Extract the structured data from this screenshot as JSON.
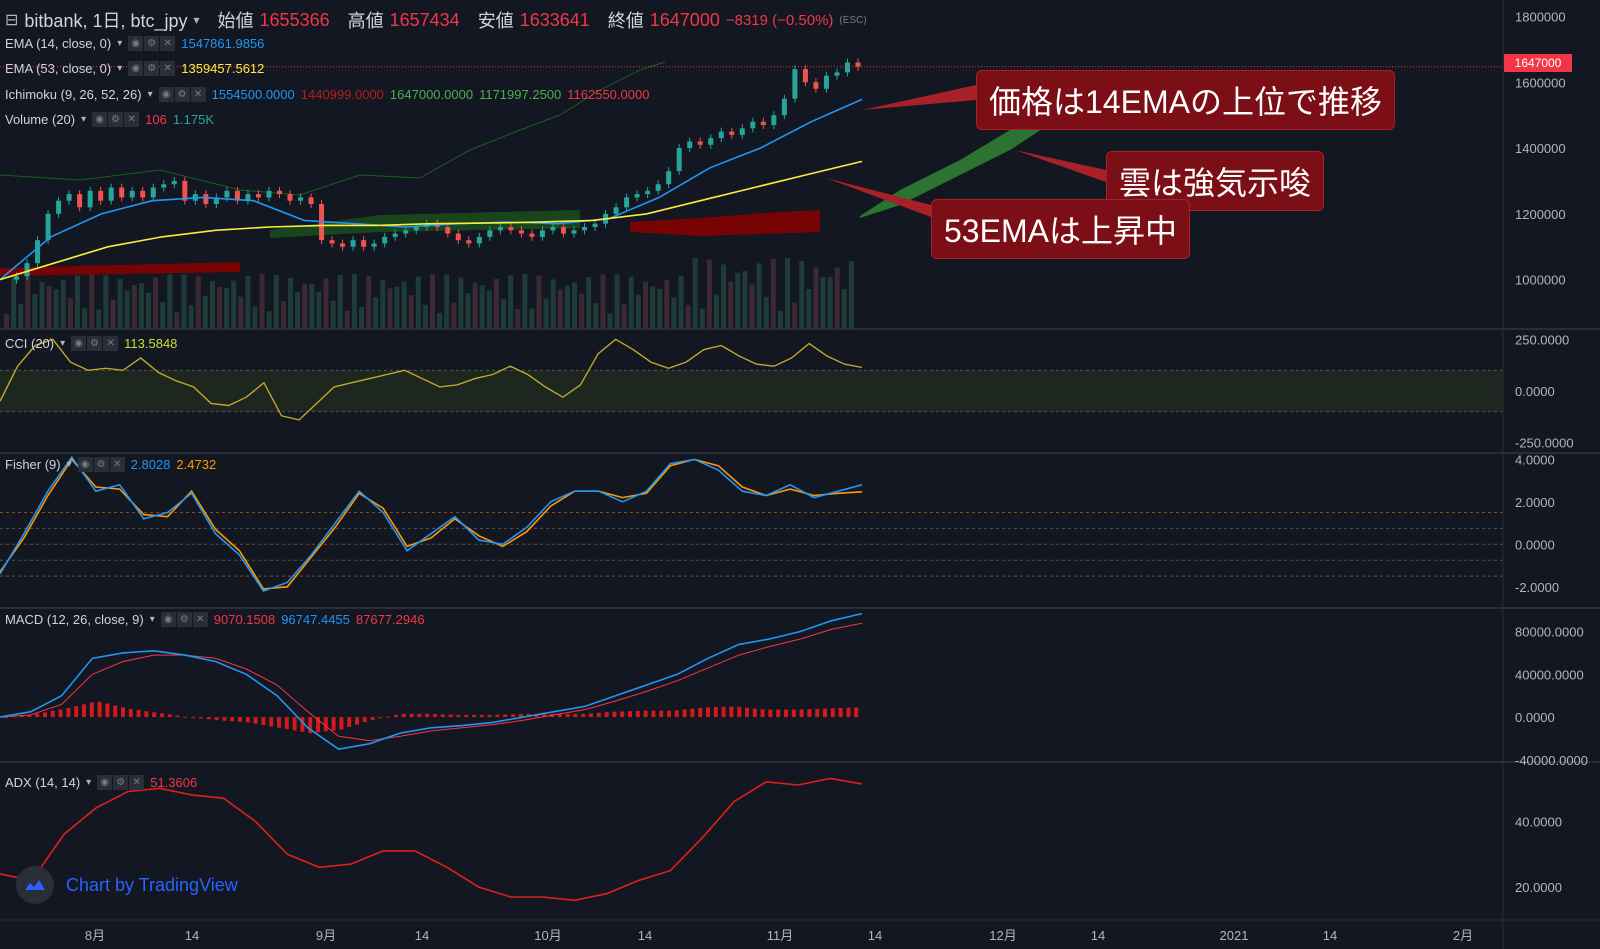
{
  "header": {
    "symbol": "bitbank, 1日, btc_jpy",
    "open_label": "始値",
    "open": "1655366",
    "high_label": "高値",
    "high": "1657434",
    "low_label": "安値",
    "low": "1633641",
    "close_label": "終値",
    "close": "1647000",
    "change": "−8319 (−0.50%)",
    "tooltip_hint": "(ESC)"
  },
  "legends": {
    "ema14": {
      "name": "EMA (14, close, 0)",
      "value": "1547861.9856",
      "color": "#2196f3"
    },
    "ema53": {
      "name": "EMA (53, close, 0)",
      "value": "1359457.5612",
      "color": "#ffeb3b"
    },
    "ichimoku": {
      "name": "Ichimoku (9, 26, 52, 26)",
      "v1": "1554500.0000",
      "v2": "1440999.0000",
      "v3": "1647000.0000",
      "v4": "1171997.2500",
      "v5": "1162550.0000"
    },
    "volume": {
      "name": "Volume (20)",
      "v1": "106",
      "v2": "1.175K"
    },
    "cci": {
      "name": "CCI (20)",
      "value": "113.5848"
    },
    "fisher": {
      "name": "Fisher (9)",
      "v1": "2.8028",
      "v2": "2.4732"
    },
    "macd": {
      "name": "MACD (12, 26, close, 9)",
      "v1": "9070.1508",
      "v2": "96747.4455",
      "v3": "87677.2946"
    },
    "adx": {
      "name": "ADX (14, 14)",
      "value": "51.3606"
    }
  },
  "annotations": {
    "a1": "価格は14EMAの上位で推移",
    "a2": "雲は強気示唆",
    "a3": "53EMAは上昇中"
  },
  "branding": "Chart by TradingView",
  "last_price_flag": "1647000",
  "chart_data": [
    {
      "type": "candlestick",
      "title": "bitbank, 1日, btc_jpy",
      "ylim": [
        850000,
        1850000
      ],
      "y_ticks": [
        "1800000",
        "1600000",
        "1400000",
        "1200000",
        "1000000"
      ],
      "x_ticks": [
        "8月",
        "14",
        "9月",
        "14",
        "10月",
        "14",
        "11月",
        "14",
        "12月",
        "14",
        "2021",
        "14",
        "2月"
      ],
      "close_path": [
        1000000,
        1010000,
        1050000,
        1120000,
        1200000,
        1240000,
        1260000,
        1220000,
        1270000,
        1240000,
        1280000,
        1250000,
        1270000,
        1250000,
        1280000,
        1290000,
        1300000,
        1240000,
        1260000,
        1230000,
        1250000,
        1270000,
        1240000,
        1260000,
        1250000,
        1270000,
        1260000,
        1240000,
        1250000,
        1230000,
        1120000,
        1110000,
        1100000,
        1120000,
        1100000,
        1110000,
        1130000,
        1140000,
        1150000,
        1160000,
        1170000,
        1160000,
        1140000,
        1120000,
        1110000,
        1130000,
        1150000,
        1160000,
        1150000,
        1140000,
        1130000,
        1150000,
        1160000,
        1140000,
        1150000,
        1160000,
        1170000,
        1200000,
        1220000,
        1250000,
        1260000,
        1270000,
        1290000,
        1330000,
        1400000,
        1420000,
        1410000,
        1430000,
        1450000,
        1440000,
        1460000,
        1480000,
        1470000,
        1500000,
        1550000,
        1640000,
        1600000,
        1580000,
        1620000,
        1630000,
        1660000,
        1647000
      ],
      "ema14": [
        1000000,
        1130000,
        1200000,
        1240000,
        1250000,
        1240000,
        1180000,
        1170000,
        1160000,
        1170000,
        1175000,
        1170000,
        1185000,
        1250000,
        1340000,
        1400000,
        1480000,
        1547861.9856
      ],
      "ema53": [
        1000000,
        1050000,
        1100000,
        1130000,
        1150000,
        1160000,
        1165000,
        1165000,
        1170000,
        1172000,
        1175000,
        1180000,
        1200000,
        1240000,
        1280000,
        1320000,
        1359457.5612
      ],
      "cloud_note": "green cloud ahead in late Nov; red cloud early Nov"
    },
    {
      "type": "line",
      "title": "CCI (20)",
      "ylim": [
        -300,
        300
      ],
      "y_ticks": [
        "250.0000",
        "0.0000",
        "-250.0000"
      ],
      "bands": [
        100,
        -100
      ],
      "values": [
        -50,
        120,
        220,
        250,
        140,
        100,
        110,
        100,
        160,
        90,
        50,
        20,
        -60,
        -70,
        -30,
        40,
        -120,
        -140,
        -60,
        20,
        40,
        60,
        80,
        100,
        60,
        20,
        30,
        60,
        80,
        120,
        80,
        20,
        -30,
        30,
        180,
        250,
        200,
        140,
        110,
        140,
        200,
        220,
        170,
        130,
        120,
        160,
        230,
        170,
        130,
        113.5848
      ]
    },
    {
      "type": "line",
      "title": "Fisher (9)",
      "ylim": [
        -3,
        4.3
      ],
      "y_ticks": [
        "4.0000",
        "2.0000",
        "0.0000",
        "-2.0000"
      ],
      "bands": [
        1.5,
        0.75,
        0,
        -0.75,
        -1.5
      ],
      "series": [
        {
          "name": "fisher",
          "values": [
            -1.4,
            0.5,
            2.5,
            4.1,
            2.5,
            2.8,
            1.2,
            1.5,
            2.4,
            0.5,
            -0.5,
            -2.2,
            -1.8,
            -0.5,
            1.0,
            2.5,
            1.5,
            -0.3,
            0.5,
            1.3,
            0.2,
            0.0,
            0.8,
            2.0,
            2.5,
            2.5,
            2.0,
            2.5,
            3.8,
            4.0,
            3.5,
            2.5,
            2.3,
            2.8,
            2.2,
            2.5,
            2.8028
          ],
          "color": "#2196f3"
        },
        {
          "name": "trigger",
          "values": [
            -1.3,
            0.3,
            2.3,
            4.0,
            2.7,
            2.6,
            1.4,
            1.3,
            2.5,
            0.7,
            -0.3,
            -2.1,
            -2.0,
            -0.6,
            0.8,
            2.4,
            1.7,
            -0.1,
            0.3,
            1.2,
            0.4,
            -0.1,
            0.6,
            1.8,
            2.5,
            2.5,
            2.2,
            2.4,
            3.7,
            4.0,
            3.7,
            2.7,
            2.3,
            2.6,
            2.3,
            2.4,
            2.4732
          ],
          "color": "#ff9800"
        }
      ]
    },
    {
      "type": "line",
      "title": "MACD (12, 26, close, 9)",
      "ylim": [
        -42000,
        102000
      ],
      "y_ticks": [
        "80000.0000",
        "40000.0000",
        "0.0000",
        "-40000.0000"
      ],
      "series": [
        {
          "name": "macd",
          "values": [
            0,
            5000,
            20000,
            55000,
            60000,
            62000,
            58000,
            52000,
            40000,
            20000,
            -10000,
            -30000,
            -25000,
            -15000,
            -10000,
            -8000,
            -5000,
            0,
            5000,
            10000,
            20000,
            30000,
            40000,
            55000,
            68000,
            73000,
            80000,
            90000,
            96747.4455
          ],
          "color": "#2196f3"
        },
        {
          "name": "signal",
          "values": [
            0,
            2000,
            12000,
            40000,
            52000,
            58000,
            58000,
            55000,
            45000,
            30000,
            5000,
            -18000,
            -22000,
            -18000,
            -13000,
            -10000,
            -7000,
            -3000,
            2000,
            7000,
            15000,
            24000,
            34000,
            46000,
            58000,
            66000,
            73000,
            82000,
            87677.2946
          ],
          "color": "#f23645"
        }
      ],
      "histogram_last": 9070.1508
    },
    {
      "type": "line",
      "title": "ADX (14, 14)",
      "ylim": [
        10,
        58
      ],
      "y_ticks": [
        "40.0000",
        "20.0000"
      ],
      "values": [
        24,
        22,
        36,
        44,
        49,
        50,
        48,
        47,
        40,
        30,
        26,
        27,
        31,
        31,
        26,
        20,
        17,
        17,
        16,
        18,
        22,
        25,
        35,
        46,
        52,
        51,
        53,
        51.3606
      ]
    }
  ]
}
